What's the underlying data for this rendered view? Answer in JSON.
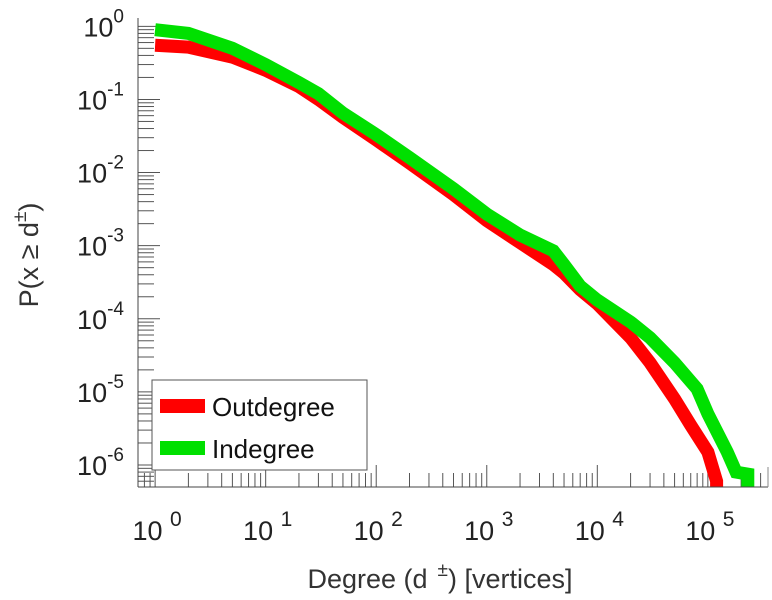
{
  "chart_data": {
    "type": "line",
    "xlabel_main": "Degree (d",
    "xlabel_sup": "±",
    "xlabel_tail": ") [vertices]",
    "ylabel_main": "P(x ≥ d",
    "ylabel_sup": "±",
    "ylabel_tail": ")",
    "x_scale": "log",
    "y_scale": "log",
    "xlim": [
      0.7,
      350000
    ],
    "ylim": [
      5e-07,
      1.3
    ],
    "x_tick_labels": [
      {
        "value": 1,
        "base": "10",
        "exp": "0"
      },
      {
        "value": 10,
        "base": "10",
        "exp": "1"
      },
      {
        "value": 100,
        "base": "10",
        "exp": "2"
      },
      {
        "value": 1000,
        "base": "10",
        "exp": "3"
      },
      {
        "value": 10000,
        "base": "10",
        "exp": "4"
      },
      {
        "value": 100000,
        "base": "10",
        "exp": "5"
      }
    ],
    "y_tick_labels": [
      {
        "value": 1,
        "base": "10",
        "exp": "0"
      },
      {
        "value": 0.1,
        "base": "10",
        "exp": "-1"
      },
      {
        "value": 0.01,
        "base": "10",
        "exp": "-2"
      },
      {
        "value": 0.001,
        "base": "10",
        "exp": "-3"
      },
      {
        "value": 0.0001,
        "base": "10",
        "exp": "-4"
      },
      {
        "value": 1e-05,
        "base": "10",
        "exp": "-5"
      },
      {
        "value": 1e-06,
        "base": "10",
        "exp": "-6"
      }
    ],
    "legend_position": "bottom-left",
    "series": [
      {
        "name": "Outdegree",
        "color": "#ff0000",
        "points": [
          [
            1,
            0.55
          ],
          [
            2,
            0.52
          ],
          [
            5,
            0.38
          ],
          [
            10,
            0.25
          ],
          [
            20,
            0.15
          ],
          [
            30,
            0.1
          ],
          [
            50,
            0.057
          ],
          [
            100,
            0.028
          ],
          [
            200,
            0.0135
          ],
          [
            500,
            0.005
          ],
          [
            1000,
            0.0022
          ],
          [
            2000,
            0.0011
          ],
          [
            4000,
            0.00055
          ],
          [
            5000,
            0.00042
          ],
          [
            7000,
            0.00025
          ],
          [
            10000,
            0.00016
          ],
          [
            20000,
            5.5e-05
          ],
          [
            30000,
            2.5e-05
          ],
          [
            50000,
            8e-06
          ],
          [
            70000,
            3.5e-06
          ],
          [
            100000,
            1.5e-06
          ],
          [
            120000,
            6e-07
          ]
        ]
      },
      {
        "name": "Indegree",
        "color": "#00e000",
        "points": [
          [
            1,
            0.9
          ],
          [
            2,
            0.8
          ],
          [
            5,
            0.5
          ],
          [
            10,
            0.3
          ],
          [
            20,
            0.17
          ],
          [
            30,
            0.12
          ],
          [
            50,
            0.065
          ],
          [
            100,
            0.033
          ],
          [
            200,
            0.016
          ],
          [
            500,
            0.006
          ],
          [
            1000,
            0.0027
          ],
          [
            2000,
            0.0014
          ],
          [
            4000,
            0.00085
          ],
          [
            5000,
            0.00055
          ],
          [
            7000,
            0.00028
          ],
          [
            10000,
            0.00018
          ],
          [
            20000,
            9e-05
          ],
          [
            30000,
            5.5e-05
          ],
          [
            50000,
            2.5e-05
          ],
          [
            80000,
            1.1e-05
          ],
          [
            100000,
            5e-06
          ],
          [
            150000,
            1.5e-06
          ],
          [
            180000,
            8e-07
          ],
          [
            230000,
            7.5e-07
          ]
        ]
      }
    ]
  }
}
